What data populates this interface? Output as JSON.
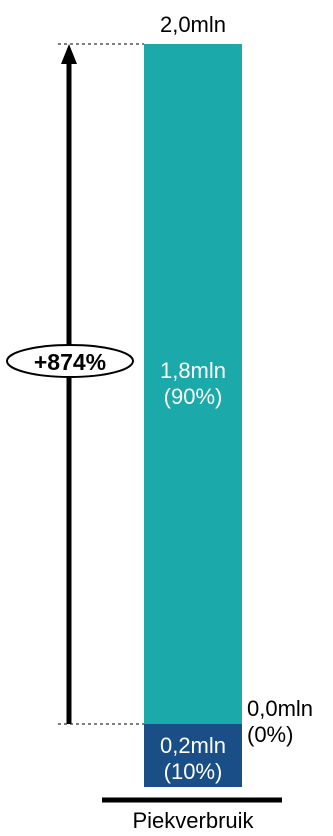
{
  "chart_data": {
    "type": "bar",
    "stacked": true,
    "categories": [
      "Piekverbruik"
    ],
    "ylim": [
      0,
      2.0
    ],
    "grid": false,
    "legend": "none",
    "series": [
      {
        "values": [
          0.2
        ],
        "label_value": "0,2mln",
        "label_share": "(10%)",
        "color": "#1a4e86"
      },
      {
        "values": [
          1.8
        ],
        "label_value": "1,8mln",
        "label_share": "(90%)",
        "color": "#1ba9aa"
      }
    ],
    "annotations": {
      "top_total": "2,0mln",
      "baseline_value": "0,0mln",
      "baseline_share": "(0%)",
      "growth_label": "+874%"
    },
    "colors": {
      "text_light": "#ffffff",
      "ink": "#000000"
    }
  }
}
